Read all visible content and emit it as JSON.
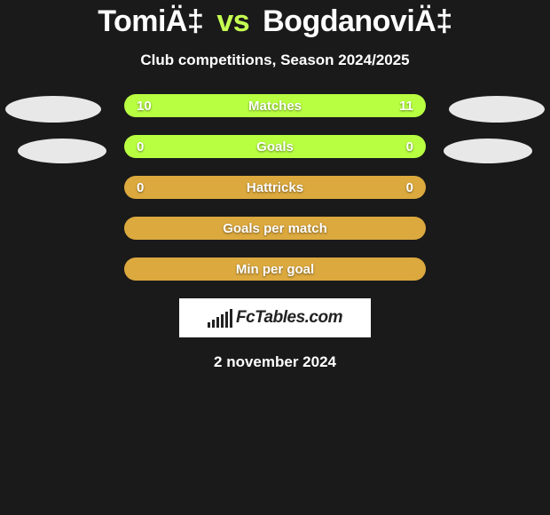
{
  "title": {
    "player1": "TomiÄ‡",
    "vs": "vs",
    "player2": "BogdanoviÄ‡",
    "vs_color": "#c5ff52"
  },
  "subtitle": "Club competitions, Season 2024/2025",
  "rows": [
    {
      "label": "Matches",
      "left": "10",
      "right": "11",
      "bg": "#b8ff42",
      "has_vals": true
    },
    {
      "label": "Goals",
      "left": "0",
      "right": "0",
      "bg": "#b8ff42",
      "has_vals": true
    },
    {
      "label": "Hattricks",
      "left": "0",
      "right": "0",
      "bg": "#dca93e",
      "has_vals": true
    },
    {
      "label": "Goals per match",
      "left": "",
      "right": "",
      "bg": "#dca93e",
      "has_vals": false
    },
    {
      "label": "Min per goal",
      "left": "",
      "right": "",
      "bg": "#dca93e",
      "has_vals": false
    }
  ],
  "logo_text": "FcTables.com",
  "logo_bar_heights": [
    6,
    9,
    12,
    15,
    18,
    21
  ],
  "date": "2 november 2024",
  "colors": {
    "background": "#1a1a1a",
    "blob": "#e8e8e8"
  }
}
